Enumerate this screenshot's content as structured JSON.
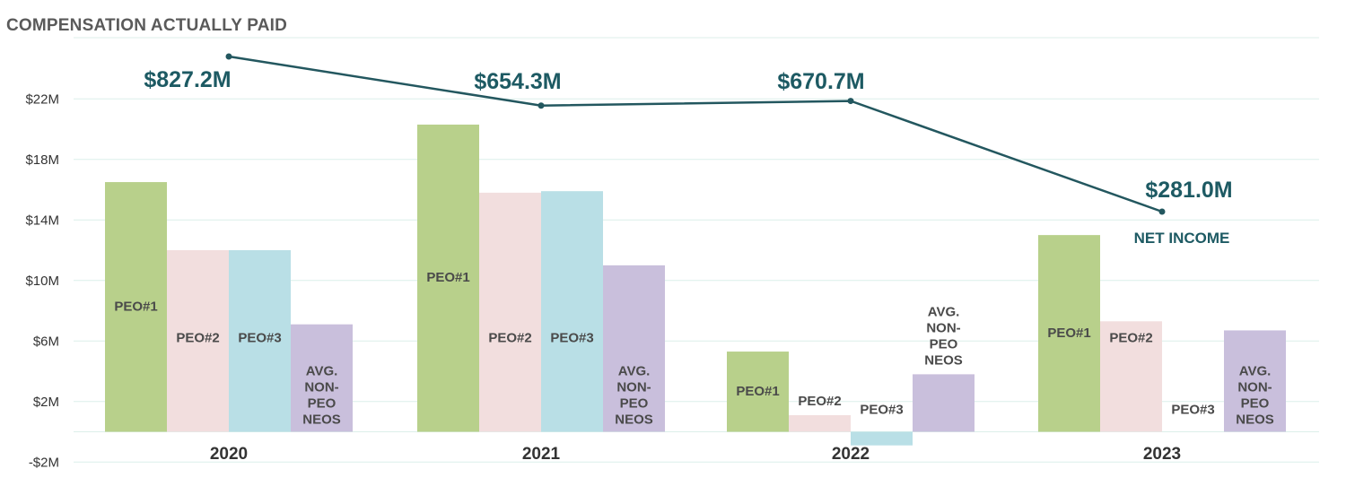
{
  "title": "COMPENSATION ACTUALLY PAID",
  "colors": {
    "peo1": "#b8d08b",
    "peo2": "#f2dede",
    "peo3": "#b9dfe6",
    "avg": "#c9bfdc",
    "line": "#23575f",
    "grid": "#dcefea"
  },
  "chart_data": {
    "type": "bar",
    "title": "COMPENSATION ACTUALLY PAID",
    "categories": [
      "2020",
      "2021",
      "2022",
      "2023"
    ],
    "ylim": [
      -2,
      24
    ],
    "yticks": [
      -2,
      2,
      6,
      10,
      14,
      18,
      22
    ],
    "ytick_labels": [
      "-$2M",
      "$2M",
      "$6M",
      "$10M",
      "$14M",
      "$18M",
      "$22M"
    ],
    "grid": true,
    "series": [
      {
        "key": "peo1",
        "name": "PEO#1",
        "label_lines": [
          "PEO#1"
        ],
        "values": [
          16.5,
          20.3,
          5.3,
          13.0
        ]
      },
      {
        "key": "peo2",
        "name": "PEO#2",
        "label_lines": [
          "PEO#2"
        ],
        "values": [
          12.0,
          15.8,
          1.1,
          7.3
        ]
      },
      {
        "key": "peo3",
        "name": "PEO#3",
        "label_lines": [
          "PEO#3"
        ],
        "values": [
          12.0,
          15.9,
          -0.9,
          0
        ]
      },
      {
        "key": "avg",
        "name": "AVG. NON-PEO NEOS",
        "label_lines": [
          "AVG.",
          "NON-",
          "PEO",
          "NEOS"
        ],
        "values": [
          7.1,
          11.0,
          3.8,
          6.7
        ]
      }
    ],
    "line_series": {
      "name": "NET INCOME",
      "labels": [
        "$827.2M",
        "$654.3M",
        "$670.7M",
        "$281.0M"
      ],
      "values": [
        827.2,
        654.3,
        670.7,
        281.0
      ]
    }
  }
}
